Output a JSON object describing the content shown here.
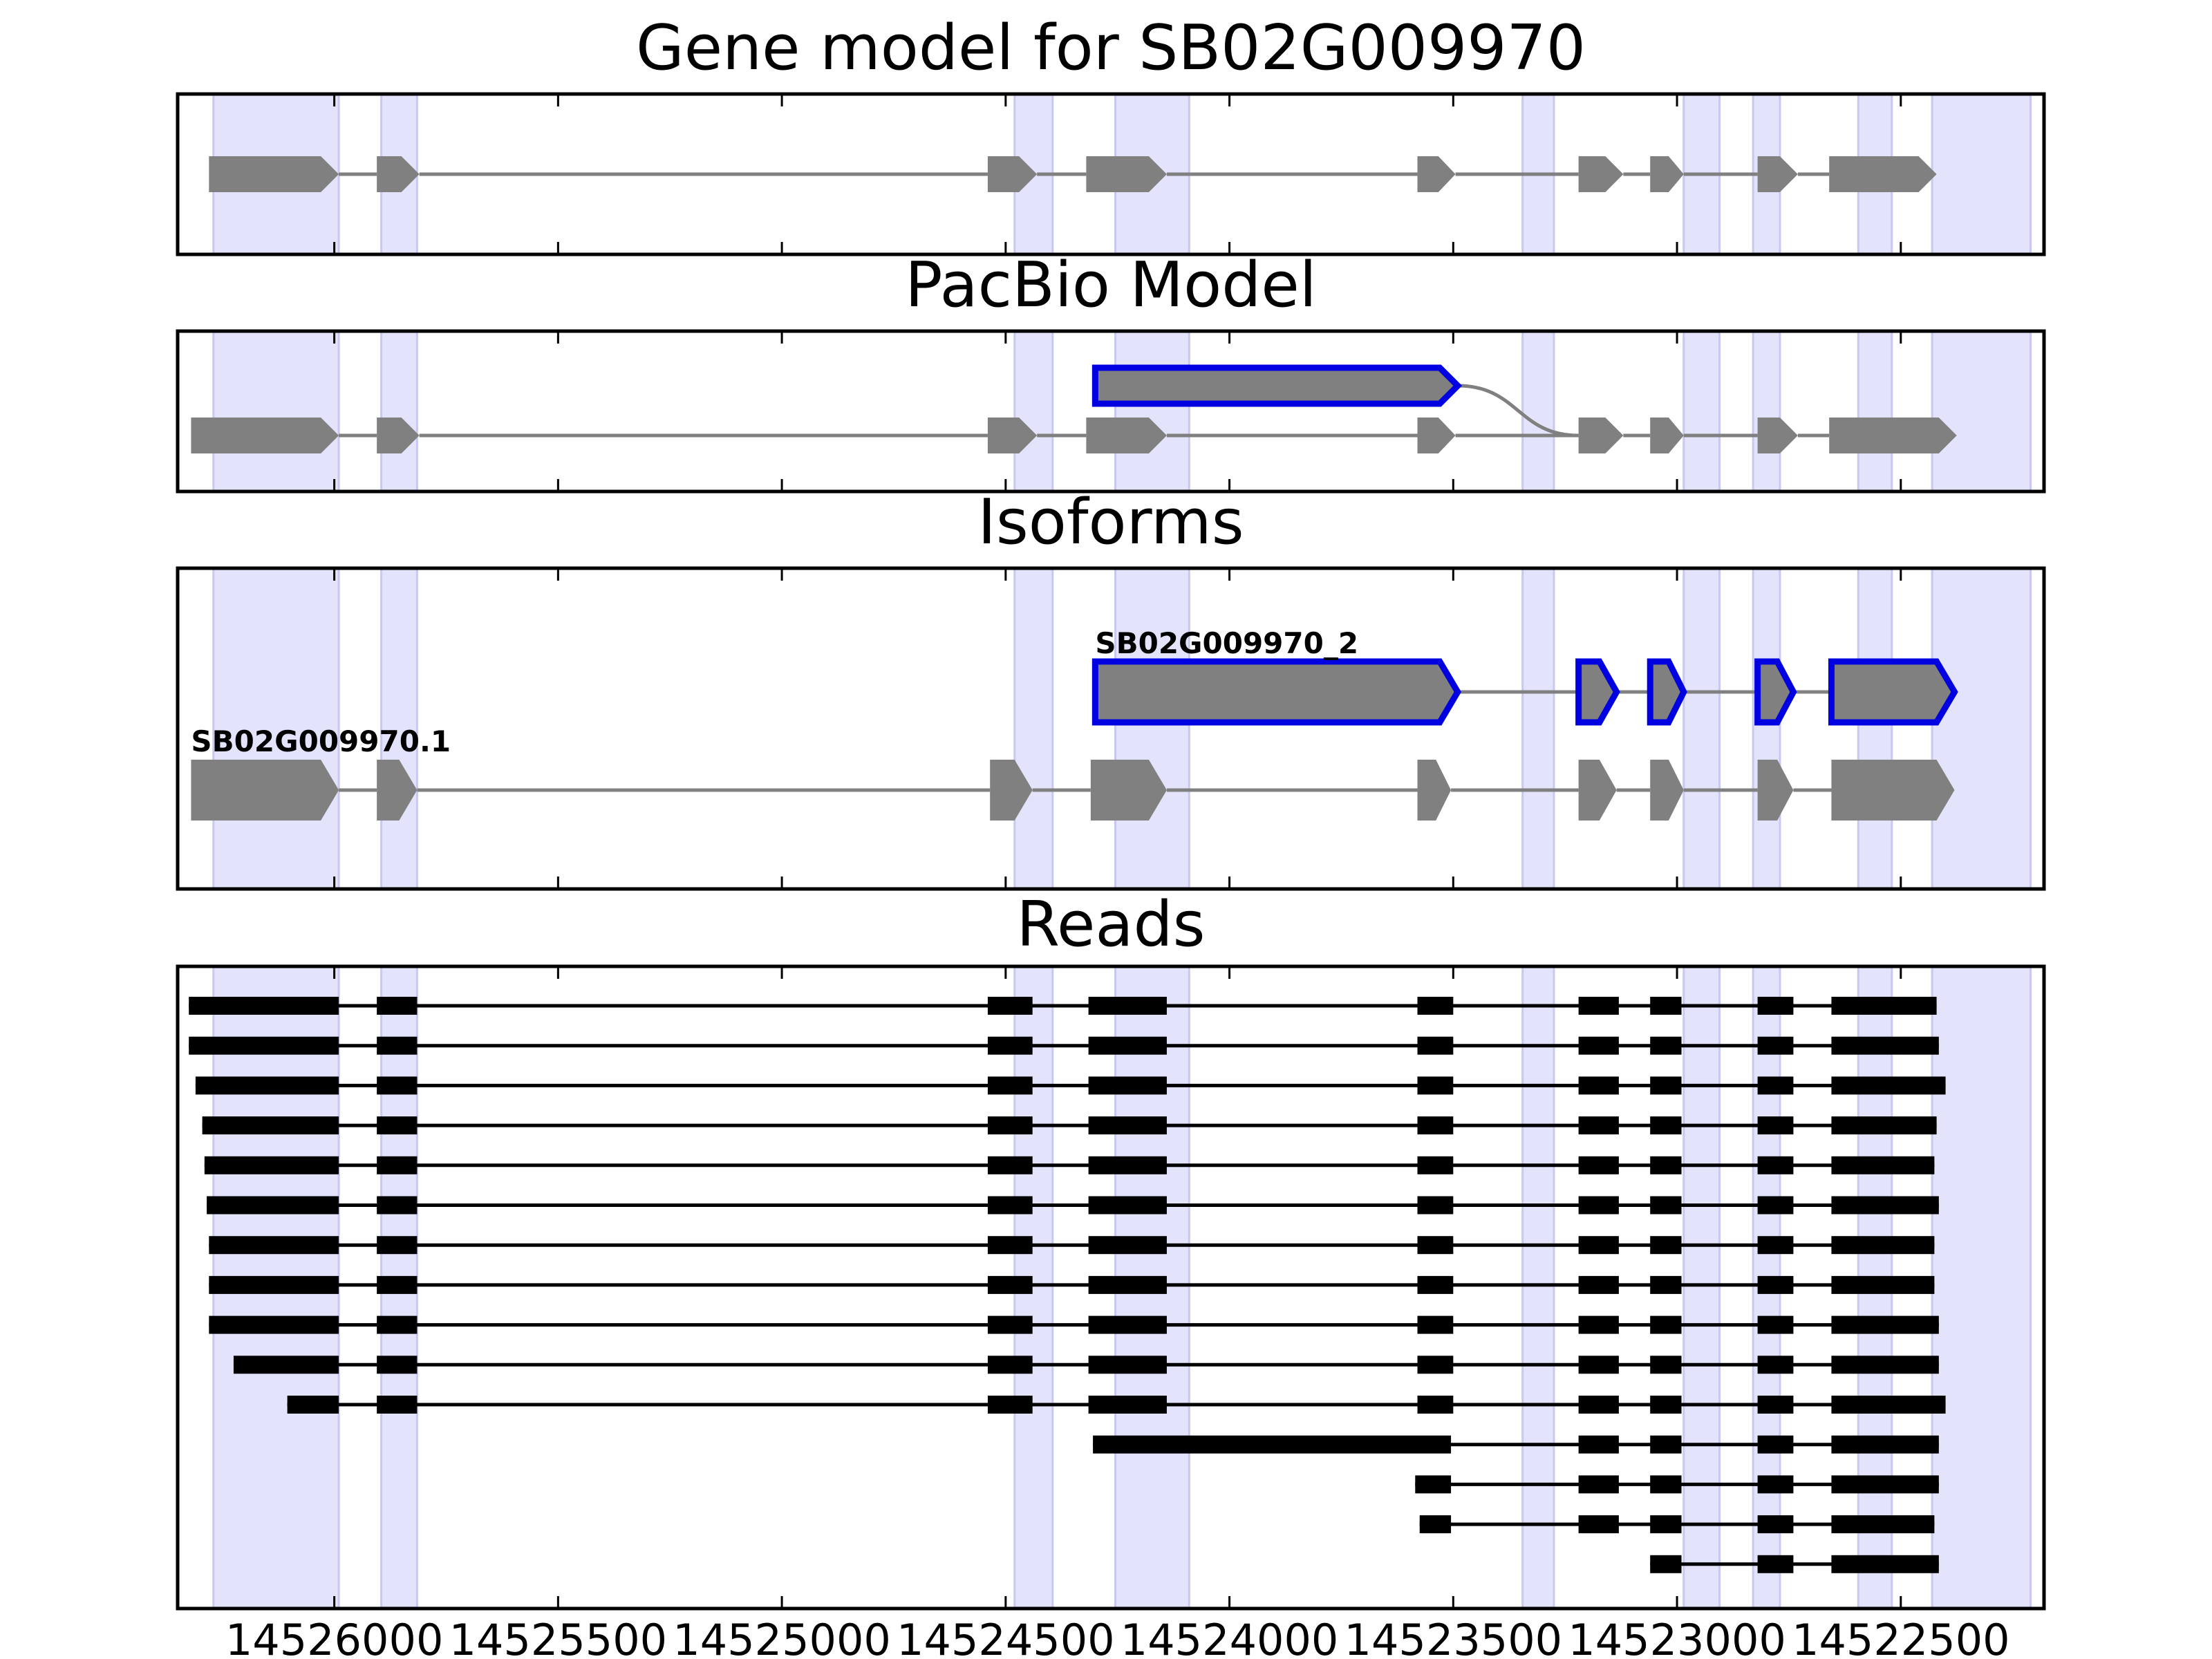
{
  "colors": {
    "exon_fill": "#808080",
    "intron_line": "#808080",
    "highlight_band": "#e3e3fb",
    "highlight_edge": "#c8c8f0",
    "selected_outline": "#0000e0",
    "read": "#000000",
    "axis": "#000000"
  },
  "chart_data": {
    "type": "gene-structure",
    "orientation": "coordinates decrease left to right",
    "x_range": [
      14526350,
      14522180
    ],
    "x_ticks": [
      14526000,
      14525500,
      14525000,
      14524500,
      14524000,
      14523500,
      14523000,
      14522500
    ],
    "x_tick_labels": [
      "14526000",
      "14525500",
      "14525000",
      "14524500",
      "14524000",
      "14523500",
      "14523000",
      "14522500"
    ],
    "exon_bands": [
      [
        14526270,
        14525990
      ],
      [
        14525895,
        14525815
      ],
      [
        14524480,
        14524395
      ],
      [
        14524255,
        14524090
      ],
      [
        14523345,
        14523275
      ],
      [
        14522985,
        14522905
      ],
      [
        14522830,
        14522770
      ],
      [
        14522595,
        14522520
      ],
      [
        14522430,
        14522210
      ]
    ],
    "panels": [
      {
        "title": "Gene model for SB02G009970",
        "kind": "model",
        "transcripts": [
          {
            "label": "",
            "selected": false,
            "exons": [
              [
                14526280,
                14525990
              ],
              [
                14525905,
                14525810
              ],
              [
                14524540,
                14524430
              ],
              [
                14524320,
                14524140
              ],
              [
                14523580,
                14523495
              ],
              [
                14523220,
                14523120
              ],
              [
                14523060,
                14522985
              ],
              [
                14522820,
                14522730
              ],
              [
                14522660,
                14522420
              ]
            ]
          }
        ]
      },
      {
        "title": "PacBio Model",
        "kind": "model",
        "transcripts": [
          {
            "label": "",
            "selected": true,
            "exons": [
              [
                14524300,
                14523490
              ]
            ],
            "join_to_row": 1,
            "join_to_coord": 14523220
          },
          {
            "label": "",
            "selected": false,
            "exons": [
              [
                14526320,
                14525990
              ],
              [
                14525905,
                14525810
              ],
              [
                14524540,
                14524430
              ],
              [
                14524320,
                14524140
              ],
              [
                14523580,
                14523495
              ],
              [
                14523220,
                14523120
              ],
              [
                14523060,
                14522985
              ],
              [
                14522820,
                14522730
              ],
              [
                14522660,
                14522375
              ]
            ]
          }
        ]
      },
      {
        "title": "Isoforms",
        "kind": "model",
        "transcripts": [
          {
            "label": "SB02G009970_2",
            "selected": true,
            "exons": [
              [
                14524300,
                14523490
              ],
              [
                14523220,
                14523135
              ],
              [
                14523060,
                14522985
              ],
              [
                14522820,
                14522740
              ],
              [
                14522655,
                14522380
              ]
            ]
          },
          {
            "label": "SB02G009970.1",
            "selected": false,
            "exons": [
              [
                14526320,
                14525990
              ],
              [
                14525905,
                14525815
              ],
              [
                14524535,
                14524440
              ],
              [
                14524310,
                14524140
              ],
              [
                14523580,
                14523505
              ],
              [
                14523220,
                14523135
              ],
              [
                14523060,
                14522985
              ],
              [
                14522820,
                14522740
              ],
              [
                14522655,
                14522380
              ]
            ]
          }
        ]
      },
      {
        "title": "Reads",
        "kind": "reads",
        "reads": [
          [
            [
              14526325,
              14525990
            ],
            [
              14525905,
              14525815
            ],
            [
              14524540,
              14524440
            ],
            [
              14524315,
              14524140
            ],
            [
              14523580,
              14523500
            ],
            [
              14523220,
              14523130
            ],
            [
              14523060,
              14522990
            ],
            [
              14522820,
              14522740
            ],
            [
              14522655,
              14522420
            ]
          ],
          [
            [
              14526325,
              14525990
            ],
            [
              14525905,
              14525815
            ],
            [
              14524540,
              14524440
            ],
            [
              14524315,
              14524140
            ],
            [
              14523580,
              14523500
            ],
            [
              14523220,
              14523130
            ],
            [
              14523060,
              14522990
            ],
            [
              14522820,
              14522740
            ],
            [
              14522655,
              14522415
            ]
          ],
          [
            [
              14526310,
              14525990
            ],
            [
              14525905,
              14525815
            ],
            [
              14524540,
              14524440
            ],
            [
              14524315,
              14524140
            ],
            [
              14523580,
              14523500
            ],
            [
              14523220,
              14523130
            ],
            [
              14523060,
              14522990
            ],
            [
              14522820,
              14522740
            ],
            [
              14522655,
              14522400
            ]
          ],
          [
            [
              14526295,
              14525990
            ],
            [
              14525905,
              14525815
            ],
            [
              14524540,
              14524440
            ],
            [
              14524315,
              14524140
            ],
            [
              14523580,
              14523500
            ],
            [
              14523220,
              14523130
            ],
            [
              14523060,
              14522990
            ],
            [
              14522820,
              14522740
            ],
            [
              14522655,
              14522420
            ]
          ],
          [
            [
              14526290,
              14525990
            ],
            [
              14525905,
              14525815
            ],
            [
              14524540,
              14524440
            ],
            [
              14524315,
              14524140
            ],
            [
              14523580,
              14523500
            ],
            [
              14523220,
              14523130
            ],
            [
              14523060,
              14522990
            ],
            [
              14522820,
              14522740
            ],
            [
              14522655,
              14522425
            ]
          ],
          [
            [
              14526285,
              14525990
            ],
            [
              14525905,
              14525815
            ],
            [
              14524540,
              14524440
            ],
            [
              14524315,
              14524140
            ],
            [
              14523580,
              14523500
            ],
            [
              14523220,
              14523130
            ],
            [
              14523060,
              14522990
            ],
            [
              14522820,
              14522740
            ],
            [
              14522655,
              14522415
            ]
          ],
          [
            [
              14526280,
              14525990
            ],
            [
              14525905,
              14525815
            ],
            [
              14524540,
              14524440
            ],
            [
              14524315,
              14524140
            ],
            [
              14523580,
              14523500
            ],
            [
              14523220,
              14523130
            ],
            [
              14523060,
              14522990
            ],
            [
              14522820,
              14522740
            ],
            [
              14522655,
              14522425
            ]
          ],
          [
            [
              14526280,
              14525990
            ],
            [
              14525905,
              14525815
            ],
            [
              14524540,
              14524440
            ],
            [
              14524315,
              14524140
            ],
            [
              14523580,
              14523500
            ],
            [
              14523220,
              14523130
            ],
            [
              14523060,
              14522990
            ],
            [
              14522820,
              14522740
            ],
            [
              14522655,
              14522425
            ]
          ],
          [
            [
              14526280,
              14525990
            ],
            [
              14525905,
              14525815
            ],
            [
              14524540,
              14524440
            ],
            [
              14524315,
              14524140
            ],
            [
              14523580,
              14523500
            ],
            [
              14523220,
              14523130
            ],
            [
              14523060,
              14522990
            ],
            [
              14522820,
              14522740
            ],
            [
              14522655,
              14522415
            ]
          ],
          [
            [
              14526225,
              14525990
            ],
            [
              14525905,
              14525815
            ],
            [
              14524540,
              14524440
            ],
            [
              14524315,
              14524140
            ],
            [
              14523580,
              14523500
            ],
            [
              14523220,
              14523130
            ],
            [
              14523060,
              14522990
            ],
            [
              14522820,
              14522740
            ],
            [
              14522655,
              14522415
            ]
          ],
          [
            [
              14526105,
              14525990
            ],
            [
              14525905,
              14525815
            ],
            [
              14524540,
              14524440
            ],
            [
              14524315,
              14524140
            ],
            [
              14523580,
              14523500
            ],
            [
              14523220,
              14523130
            ],
            [
              14523060,
              14522990
            ],
            [
              14522820,
              14522740
            ],
            [
              14522655,
              14522400
            ]
          ],
          [
            [
              14524305,
              14523505
            ],
            [
              14523220,
              14523130
            ],
            [
              14523060,
              14522990
            ],
            [
              14522820,
              14522740
            ],
            [
              14522655,
              14522415
            ]
          ],
          [
            [
              14523585,
              14523505
            ],
            [
              14523220,
              14523130
            ],
            [
              14523060,
              14522990
            ],
            [
              14522820,
              14522740
            ],
            [
              14522655,
              14522415
            ]
          ],
          [
            [
              14523575,
              14523505
            ],
            [
              14523220,
              14523130
            ],
            [
              14523060,
              14522990
            ],
            [
              14522820,
              14522740
            ],
            [
              14522655,
              14522425
            ]
          ],
          [
            [
              14523060,
              14522990
            ],
            [
              14522820,
              14522740
            ],
            [
              14522655,
              14522415
            ]
          ]
        ]
      }
    ]
  }
}
